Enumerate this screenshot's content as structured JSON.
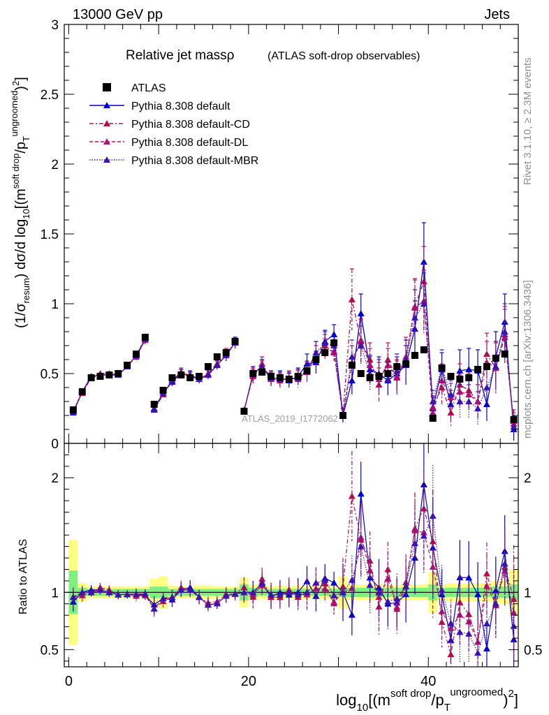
{
  "header": {
    "energy": "13000 GeV pp",
    "category": "Jets"
  },
  "side_labels": {
    "rivet": "Rivet 3.1.10, ≥ 2.3M events",
    "source": "mcplots.cern.ch [arXiv:1306.3436]"
  },
  "watermark": "ATLAS_2019_I1772062",
  "main_panel": {
    "title": "Relative jet massρ",
    "subtitle": "(ATLAS soft-drop observables)",
    "ylabel": "(1/σresum) dσ/d log10[(m^{soft drop}/p_T^{ungroomed})^2]"
  },
  "ratio_panel": {
    "ylabel": "Ratio to ATLAS"
  },
  "xlabel": "log10[(m^{soft drop}/p_T^{ungroomed})^2]",
  "colors": {
    "data": "#000000",
    "default": "#0000cc",
    "cd": "#b0104a",
    "dl": "#b01070",
    "mbr": "#3a14b0",
    "band_outer": "#ffff80",
    "band_inner": "#7fef7f"
  },
  "chart_data": {
    "type": "scatter",
    "x_range": [
      -0.5,
      50
    ],
    "main_y_range": [
      0,
      3
    ],
    "ratio_y_range": [
      0.35,
      2.3
    ],
    "x_ticks": [
      0,
      20,
      40
    ],
    "main_y_ticks": [
      0,
      0.5,
      1,
      1.5,
      2,
      2.5,
      3
    ],
    "ratio_y_ticks": [
      0.5,
      1,
      2
    ],
    "x": [
      0.5,
      1.5,
      2.5,
      3.5,
      4.5,
      5.5,
      6.5,
      7.5,
      8.5,
      9.5,
      10.5,
      11.5,
      12.5,
      13.5,
      14.5,
      15.5,
      16.5,
      17.5,
      18.5,
      19.5,
      20.5,
      21.5,
      22.5,
      23.5,
      24.5,
      25.5,
      26.5,
      27.5,
      28.5,
      29.5,
      30.5,
      31.5,
      32.5,
      33.5,
      34.5,
      35.5,
      36.5,
      37.5,
      38.5,
      39.5,
      40.5,
      41.5,
      42.5,
      43.5,
      44.5,
      45.5,
      46.5,
      47.5,
      48.5,
      49.5
    ],
    "series": [
      {
        "name": "ATLAS",
        "key": "data",
        "style": "data",
        "values": [
          0.24,
          0.37,
          0.47,
          0.48,
          0.49,
          0.5,
          0.56,
          0.64,
          0.76,
          0.28,
          0.38,
          0.47,
          0.49,
          0.47,
          0.48,
          0.55,
          0.62,
          0.65,
          0.73,
          0.23,
          0.5,
          0.51,
          0.48,
          0.47,
          0.46,
          0.48,
          0.52,
          0.6,
          0.65,
          0.72,
          0.2,
          0.56,
          0.5,
          0.47,
          0.48,
          0.5,
          0.55,
          0.57,
          0.63,
          0.67,
          0.18,
          0.54,
          0.48,
          0.46,
          0.47,
          0.53,
          0.55,
          0.61,
          0.64,
          0.17
        ]
      },
      {
        "name": "Pythia 8.308 default",
        "key": "default",
        "style": "solid",
        "values": [
          0.22,
          0.37,
          0.48,
          0.49,
          0.49,
          0.49,
          0.55,
          0.63,
          0.74,
          0.25,
          0.36,
          0.44,
          0.5,
          0.49,
          0.46,
          0.49,
          0.56,
          0.63,
          0.72,
          0.23,
          0.5,
          0.55,
          0.46,
          0.47,
          0.45,
          0.48,
          0.57,
          0.58,
          0.73,
          0.78,
          0.2,
          0.45,
          0.93,
          0.53,
          0.5,
          0.45,
          0.5,
          0.56,
          0.82,
          1.3,
          0.25,
          0.53,
          0.28,
          0.52,
          0.53,
          0.52,
          0.28,
          0.62,
          0.87,
          0.1
        ],
        "errors": [
          0.02,
          0.02,
          0.02,
          0.02,
          0.02,
          0.02,
          0.02,
          0.03,
          0.03,
          0.02,
          0.02,
          0.03,
          0.03,
          0.03,
          0.03,
          0.03,
          0.03,
          0.04,
          0.04,
          0.02,
          0.05,
          0.05,
          0.05,
          0.05,
          0.05,
          0.06,
          0.07,
          0.08,
          0.08,
          0.07,
          0.05,
          0.1,
          0.14,
          0.1,
          0.12,
          0.1,
          0.12,
          0.14,
          0.2,
          0.28,
          0.08,
          0.12,
          0.1,
          0.15,
          0.15,
          0.15,
          0.12,
          0.18,
          0.2,
          0.08
        ]
      },
      {
        "name": "Pythia 8.308 default-CD",
        "key": "cd",
        "style": "dashdot",
        "values": [
          0.23,
          0.36,
          0.47,
          0.5,
          0.5,
          0.49,
          0.55,
          0.62,
          0.74,
          0.24,
          0.35,
          0.45,
          0.51,
          0.48,
          0.46,
          0.5,
          0.57,
          0.64,
          0.72,
          0.24,
          0.48,
          0.57,
          0.46,
          0.45,
          0.47,
          0.46,
          0.52,
          0.65,
          0.7,
          0.65,
          0.21,
          1.03,
          0.73,
          0.6,
          0.42,
          0.6,
          0.47,
          0.6,
          0.98,
          1.16,
          0.26,
          0.4,
          0.22,
          0.42,
          0.38,
          0.3,
          0.64,
          0.54,
          0.78,
          0.16
        ],
        "errors": [
          0.02,
          0.02,
          0.02,
          0.02,
          0.02,
          0.02,
          0.02,
          0.03,
          0.03,
          0.02,
          0.02,
          0.03,
          0.03,
          0.03,
          0.03,
          0.03,
          0.03,
          0.04,
          0.04,
          0.02,
          0.05,
          0.05,
          0.05,
          0.05,
          0.05,
          0.06,
          0.07,
          0.08,
          0.08,
          0.07,
          0.05,
          0.22,
          0.16,
          0.12,
          0.12,
          0.12,
          0.12,
          0.14,
          0.2,
          0.25,
          0.08,
          0.12,
          0.1,
          0.15,
          0.12,
          0.12,
          0.15,
          0.18,
          0.2,
          0.08
        ]
      },
      {
        "name": "Pythia 8.308 default-DL",
        "key": "dl",
        "style": "dashed",
        "values": [
          0.23,
          0.37,
          0.47,
          0.49,
          0.49,
          0.49,
          0.55,
          0.63,
          0.75,
          0.24,
          0.36,
          0.45,
          0.5,
          0.48,
          0.46,
          0.49,
          0.56,
          0.63,
          0.72,
          0.23,
          0.49,
          0.54,
          0.47,
          0.46,
          0.46,
          0.47,
          0.51,
          0.62,
          0.67,
          0.66,
          0.2,
          0.58,
          0.74,
          0.56,
          0.46,
          0.56,
          0.48,
          0.62,
          0.97,
          1.02,
          0.22,
          0.45,
          0.33,
          0.37,
          0.35,
          0.3,
          0.58,
          0.55,
          0.76,
          0.14
        ],
        "errors": [
          0.02,
          0.02,
          0.02,
          0.02,
          0.02,
          0.02,
          0.02,
          0.03,
          0.03,
          0.02,
          0.02,
          0.03,
          0.03,
          0.03,
          0.03,
          0.03,
          0.03,
          0.04,
          0.04,
          0.02,
          0.05,
          0.05,
          0.05,
          0.05,
          0.05,
          0.06,
          0.07,
          0.08,
          0.08,
          0.07,
          0.05,
          0.12,
          0.15,
          0.12,
          0.12,
          0.12,
          0.12,
          0.14,
          0.2,
          0.22,
          0.08,
          0.12,
          0.1,
          0.12,
          0.12,
          0.12,
          0.15,
          0.18,
          0.2,
          0.08
        ]
      },
      {
        "name": "Pythia 8.308 default-MBR",
        "key": "mbr",
        "style": "dotted",
        "values": [
          0.23,
          0.37,
          0.47,
          0.49,
          0.49,
          0.49,
          0.55,
          0.63,
          0.75,
          0.24,
          0.36,
          0.45,
          0.5,
          0.48,
          0.46,
          0.49,
          0.56,
          0.63,
          0.72,
          0.23,
          0.5,
          0.55,
          0.47,
          0.46,
          0.46,
          0.47,
          0.52,
          0.65,
          0.72,
          0.7,
          0.2,
          0.62,
          0.7,
          0.5,
          0.48,
          0.46,
          0.52,
          0.6,
          0.9,
          1.0,
          0.3,
          0.55,
          0.35,
          0.3,
          0.3,
          0.25,
          0.4,
          0.55,
          0.8,
          0.12
        ],
        "errors": [
          0.02,
          0.02,
          0.02,
          0.02,
          0.02,
          0.02,
          0.02,
          0.03,
          0.03,
          0.02,
          0.02,
          0.03,
          0.03,
          0.03,
          0.03,
          0.03,
          0.03,
          0.04,
          0.04,
          0.02,
          0.05,
          0.05,
          0.05,
          0.05,
          0.05,
          0.06,
          0.07,
          0.08,
          0.08,
          0.07,
          0.05,
          0.12,
          0.14,
          0.12,
          0.12,
          0.12,
          0.12,
          0.14,
          0.2,
          0.22,
          0.08,
          0.12,
          0.1,
          0.12,
          0.12,
          0.12,
          0.15,
          0.18,
          0.2,
          0.08
        ]
      }
    ],
    "band_inner": [
      0.19,
      0.04,
      0.03,
      0.03,
      0.03,
      0.03,
      0.03,
      0.03,
      0.03,
      0.05,
      0.05,
      0.03,
      0.03,
      0.03,
      0.03,
      0.03,
      0.03,
      0.03,
      0.03,
      0.07,
      0.04,
      0.03,
      0.03,
      0.03,
      0.03,
      0.03,
      0.03,
      0.03,
      0.03,
      0.03,
      0.04,
      0.04,
      0.04,
      0.04,
      0.04,
      0.04,
      0.04,
      0.04,
      0.04,
      0.04,
      0.07,
      0.04,
      0.04,
      0.04,
      0.04,
      0.04,
      0.04,
      0.05,
      0.05,
      0.07
    ],
    "band_outer": [
      0.46,
      0.08,
      0.05,
      0.05,
      0.05,
      0.05,
      0.05,
      0.05,
      0.05,
      0.12,
      0.14,
      0.06,
      0.05,
      0.05,
      0.06,
      0.06,
      0.05,
      0.05,
      0.05,
      0.13,
      0.07,
      0.06,
      0.05,
      0.06,
      0.05,
      0.06,
      0.06,
      0.06,
      0.06,
      0.07,
      0.14,
      0.07,
      0.07,
      0.07,
      0.07,
      0.07,
      0.06,
      0.07,
      0.07,
      0.07,
      0.18,
      0.07,
      0.08,
      0.08,
      0.08,
      0.08,
      0.08,
      0.1,
      0.1,
      0.2
    ]
  }
}
